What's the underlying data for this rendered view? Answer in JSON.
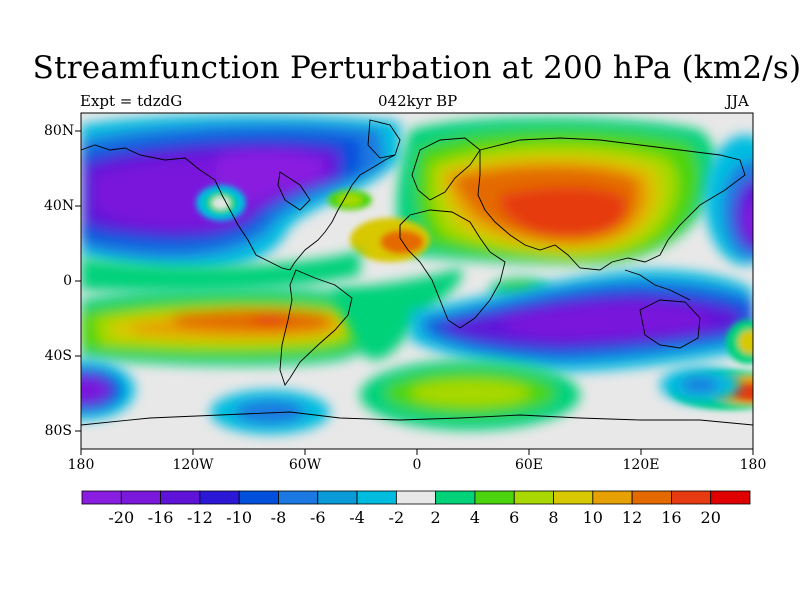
{
  "title": "Streamfunction Perturbation at 200 hPa (km2/s)",
  "subtitle_left": "Expt = tdzdG",
  "subtitle_center": "042kyr BP",
  "subtitle_right": "JJA",
  "lat_labels": [
    "80N",
    "40N",
    "0",
    "40S",
    "80S"
  ],
  "lon_labels": [
    "180",
    "120W",
    "60W",
    "0",
    "60E",
    "120E",
    "180"
  ],
  "colorbar": {
    "labels": [
      "-20",
      "-16",
      "-12",
      "-10",
      "-8",
      "-6",
      "-4",
      "-2",
      "2",
      "4",
      "6",
      "8",
      "10",
      "12",
      "16",
      "20"
    ],
    "colors": [
      "#8a1ee0",
      "#7a18dc",
      "#5f13d8",
      "#2b18d6",
      "#0050dc",
      "#1a78e0",
      "#0a9ad8",
      "#00bde0",
      "#e8e8e8",
      "#00d27a",
      "#4bd40e",
      "#a8d800",
      "#d8c800",
      "#e6a000",
      "#e46a00",
      "#e63a10",
      "#e00000"
    ]
  },
  "colors": {
    "background": "#ffffff",
    "zero_band": "#e8e8e8",
    "coast": "#000000"
  }
}
